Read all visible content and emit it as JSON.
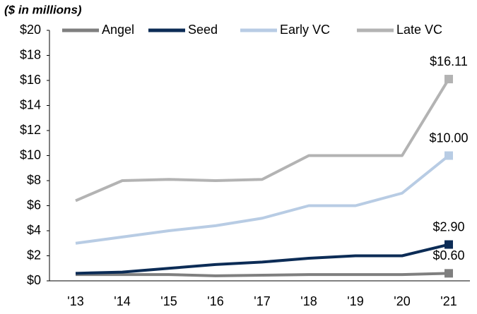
{
  "chart_data": {
    "type": "line",
    "subtitle": "($ in millions)",
    "categories": [
      "'13",
      "'14",
      "'15",
      "'16",
      "'17",
      "'18",
      "'19",
      "'20",
      "'21"
    ],
    "series": [
      {
        "name": "Angel",
        "color": "#7f7f7f",
        "values": [
          0.5,
          0.5,
          0.5,
          0.4,
          0.45,
          0.5,
          0.5,
          0.5,
          0.6
        ],
        "value_labels": [
          null,
          null,
          null,
          null,
          null,
          null,
          null,
          null,
          "$0.60"
        ]
      },
      {
        "name": "Seed",
        "color": "#0c2c56",
        "values": [
          0.6,
          0.7,
          1.0,
          1.3,
          1.5,
          1.8,
          2.0,
          2.0,
          2.9
        ],
        "value_labels": [
          null,
          null,
          null,
          null,
          null,
          null,
          null,
          null,
          "$2.90"
        ]
      },
      {
        "name": "Early VC",
        "color": "#b8cce4",
        "values": [
          3.0,
          3.5,
          4.0,
          4.4,
          5.0,
          6.0,
          6.0,
          7.0,
          10.0
        ],
        "value_labels": [
          null,
          null,
          null,
          null,
          null,
          null,
          null,
          null,
          "$10.00"
        ]
      },
      {
        "name": "Late VC",
        "color": "#b3b3b3",
        "values": [
          6.4,
          8.0,
          8.1,
          8.0,
          8.1,
          10.0,
          10.0,
          10.0,
          16.11
        ],
        "value_labels": [
          null,
          null,
          null,
          null,
          null,
          null,
          null,
          null,
          "$16.11"
        ]
      }
    ],
    "ylim": [
      0,
      20
    ],
    "yticks": [
      {
        "value": 0,
        "label": "$0"
      },
      {
        "value": 2,
        "label": "$2"
      },
      {
        "value": 4,
        "label": "$4"
      },
      {
        "value": 6,
        "label": "$6"
      },
      {
        "value": 8,
        "label": "$8"
      },
      {
        "value": 10,
        "label": "$10"
      },
      {
        "value": 12,
        "label": "$12"
      },
      {
        "value": 14,
        "label": "$14"
      },
      {
        "value": 16,
        "label": "$16"
      },
      {
        "value": 18,
        "label": "$18"
      },
      {
        "value": 20,
        "label": "$20"
      }
    ],
    "legend": "top"
  }
}
